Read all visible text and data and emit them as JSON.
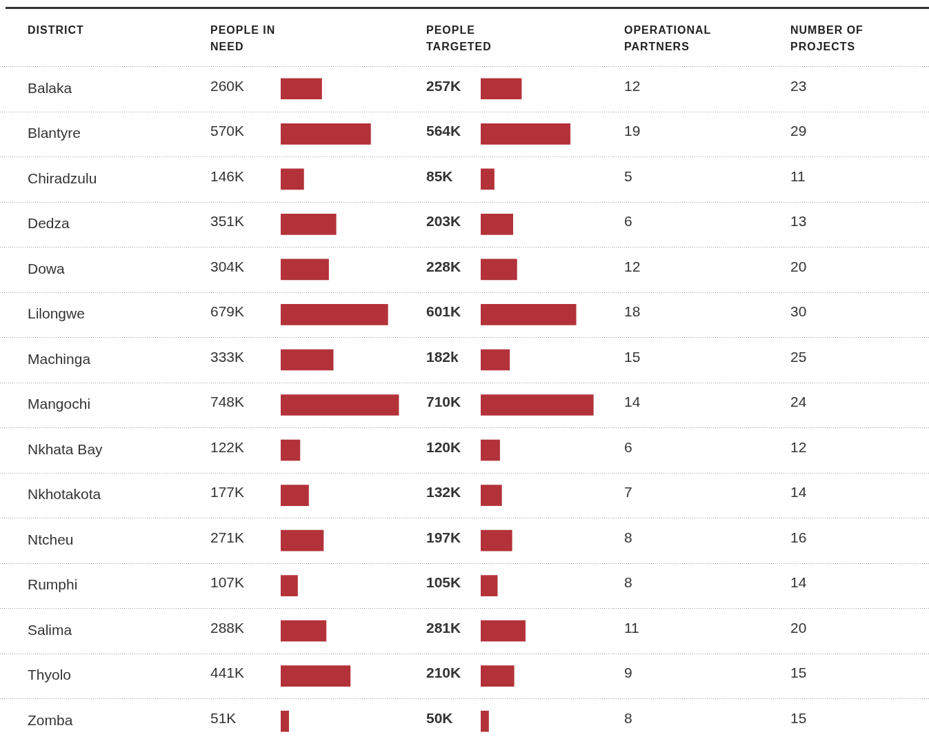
{
  "chart_data": [
    {
      "type": "bar",
      "orientation": "horizontal",
      "ylabel": "DISTRICT",
      "title": "PEOPLE IN NEED",
      "categories": [
        "Balaka",
        "Blantyre",
        "Chiradzulu",
        "Dedza",
        "Dowa",
        "Lilongwe",
        "Machinga",
        "Mangochi",
        "Nkhata Bay",
        "Nkhotakota",
        "Ntcheu",
        "Rumphi",
        "Salima",
        "Thyolo",
        "Zomba"
      ],
      "values": [
        260,
        570,
        146,
        351,
        304,
        679,
        333,
        748,
        122,
        177,
        271,
        107,
        288,
        441,
        51
      ],
      "value_labels": [
        "260K",
        "570K",
        "146K",
        "351K",
        "304K",
        "679K",
        "333K",
        "748K",
        "122K",
        "177K",
        "271K",
        "107K",
        "288K",
        "441K",
        "51K"
      ],
      "color": "#b3323a",
      "grid": "y",
      "legend": false,
      "tick_labels": "y"
    },
    {
      "type": "bar",
      "orientation": "horizontal",
      "title": "PEOPLE TARGETED",
      "categories": [
        null,
        null,
        null,
        null,
        null,
        null,
        null,
        null,
        null,
        null,
        null,
        null,
        null,
        null,
        null
      ],
      "values": [
        257,
        564,
        85,
        203,
        228,
        601,
        182,
        710,
        120,
        132,
        197,
        105,
        281,
        210,
        50
      ],
      "value_labels": [
        "257K",
        "564K",
        "85K",
        "203K",
        "228K",
        "601K",
        "182k",
        "710K",
        "120K",
        "132K",
        "197K",
        "105K",
        "281K",
        "210K",
        "50K"
      ],
      "color": "#b3323a",
      "grid": "y",
      "legend": false,
      "tick_labels": false
    },
    {
      "type": "other",
      "title": "OPERATIONAL PARTNERS",
      "values": [
        12,
        19,
        5,
        6,
        12,
        18,
        15,
        14,
        6,
        7,
        8,
        8,
        11,
        9,
        8
      ],
      "data_labels": true
    },
    {
      "type": "other",
      "title": "NUMBER OF PROJECTS",
      "values": [
        23,
        29,
        11,
        13,
        20,
        30,
        25,
        24,
        12,
        14,
        16,
        14,
        20,
        15,
        15
      ],
      "data_labels": true
    }
  ]
}
